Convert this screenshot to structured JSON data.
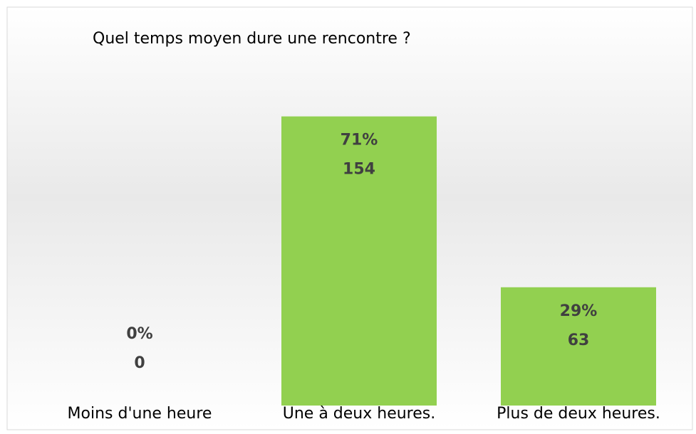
{
  "chart_data": {
    "type": "bar",
    "title": "Quel temps moyen dure une rencontre ?",
    "categories": [
      "Moins d'une heure",
      "Une à deux heures.",
      "Plus de deux heures."
    ],
    "values": [
      0,
      154,
      63
    ],
    "shares": {
      "values": [
        0,
        71,
        29
      ],
      "value_labels": [
        "0%",
        "71%",
        "29%"
      ]
    },
    "color": "#92d050",
    "ylim": [
      0,
      180
    ]
  }
}
